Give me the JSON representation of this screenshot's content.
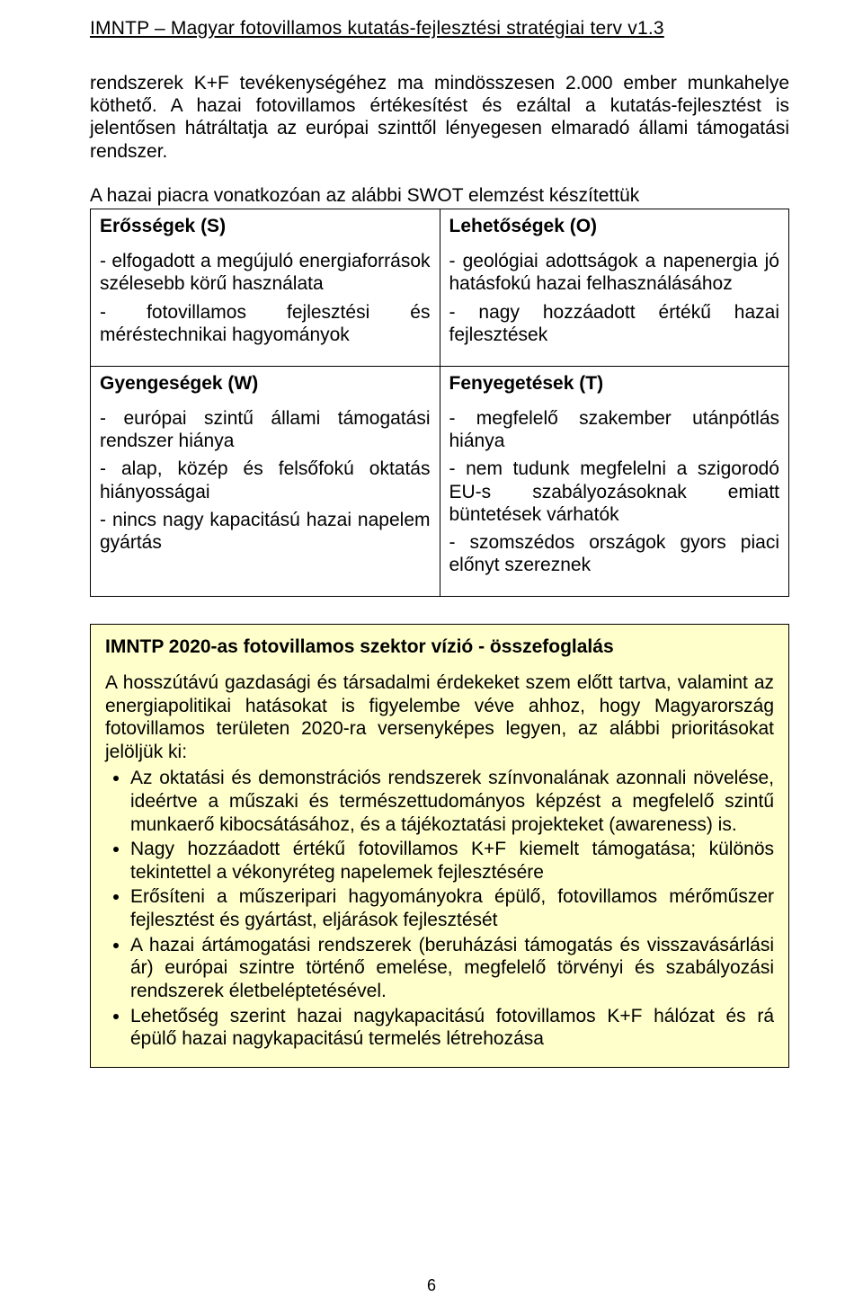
{
  "header": {
    "title": "IMNTP – Magyar fotovillamos kutatás-fejlesztési stratégiai terv v1.3"
  },
  "paragraph1": "rendszerek K+F tevékenységéhez ma mindösszesen 2.000 ember munkahelye köthető. A hazai fotovillamos értékesítést és ezáltal a kutatás-fejlesztést is jelentősen hátráltatja az európai szinttől lényegesen elmaradó állami támogatási rendszer.",
  "swot_intro": "A hazai piacra vonatkozóan az alábbi SWOT elemzést készítettük",
  "swot": {
    "s": {
      "title": "Erősségek (S)",
      "items": [
        "- elfogadott a megújuló energiaforrások szélesebb körű használata",
        "- fotovillamos fejlesztési és méréstechnikai hagyományok"
      ]
    },
    "o": {
      "title": "Lehetőségek (O)",
      "items": [
        "- geológiai adottságok a napenergia jó hatásfokú hazai felhasználásához",
        "- nagy hozzáadott értékű hazai fejlesztések"
      ]
    },
    "w": {
      "title": "Gyengeségek (W)",
      "items": [
        "- európai szintű állami támogatási rendszer hiánya",
        "- alap, közép és felsőfokú oktatás hiányosságai",
        "- nincs nagy kapacitású hazai napelem gyártás"
      ]
    },
    "t": {
      "title": "Fenyegetések (T)",
      "items": [
        "- megfelelő szakember utánpótlás hiánya",
        "- nem tudunk megfelelni a szigorodó EU-s szabályozásoknak emiatt büntetések várhatók",
        "- szomszédos országok gyors piaci előnyt szereznek"
      ]
    }
  },
  "vision": {
    "title": "IMNTP 2020-as fotovillamos szektor vízió  -  összefoglalás",
    "intro": "A hosszútávú gazdasági és társadalmi érdekeket szem előtt tartva, valamint az energiapolitikai hatásokat is figyelembe véve ahhoz, hogy Magyarország fotovillamos területen 2020-ra versenyképes legyen, az alábbi prioritásokat jelöljük ki:",
    "bullets": [
      "Az oktatási és demonstrációs rendszerek színvonalának azonnali növelése, ideértve a műszaki és természettudományos képzést a megfelelő szintű munkaerő kibocsátásához, és a tájékoztatási projekteket (awareness) is.",
      "Nagy hozzáadott értékű fotovillamos K+F kiemelt támogatása; különös tekintettel a vékonyréteg napelemek fejlesztésére",
      "Erősíteni a műszeripari hagyományokra épülő, fotovillamos mérőműszer fejlesztést és gyártást, eljárások fejlesztését",
      "A hazai ártámogatási rendszerek (beruházási támogatás és visszavásárlási ár) európai szintre történő emelése, megfelelő törvényi és szabályozási rendszerek életbeléptetésével.",
      "Lehetőség szerint hazai nagykapacitású fotovillamos K+F hálózat és rá épülő hazai nagykapacitású termelés létrehozása"
    ]
  },
  "page_number": "6"
}
